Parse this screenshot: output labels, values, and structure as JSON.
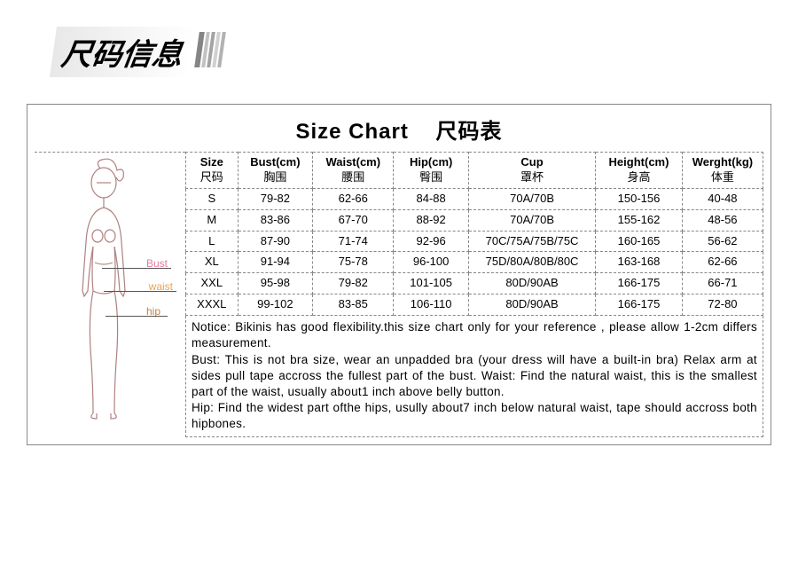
{
  "banner": {
    "text": "尺码信息"
  },
  "chart": {
    "title_en": "Size Chart",
    "title_cn": "尺码表",
    "figure_labels": {
      "bust": "Bust",
      "waist": "waist",
      "hip": "hip"
    },
    "columns": [
      {
        "en": "Size",
        "cn": "尺码"
      },
      {
        "en": "Bust(cm)",
        "cn": "胸围"
      },
      {
        "en": "Waist(cm)",
        "cn": "腰围"
      },
      {
        "en": "Hip(cm)",
        "cn": "臀围"
      },
      {
        "en": "Cup",
        "cn": "罩杯"
      },
      {
        "en": "Height(cm)",
        "cn": "身高"
      },
      {
        "en": "Werght(kg)",
        "cn": "体重"
      }
    ],
    "rows": [
      {
        "size": "S",
        "bust": "79-82",
        "waist": "62-66",
        "hip": "84-88",
        "cup": "70A/70B",
        "height": "150-156",
        "weight": "40-48"
      },
      {
        "size": "M",
        "bust": "83-86",
        "waist": "67-70",
        "hip": "88-92",
        "cup": "70A/70B",
        "height": "155-162",
        "weight": "48-56"
      },
      {
        "size": "L",
        "bust": "87-90",
        "waist": "71-74",
        "hip": "92-96",
        "cup": "70C/75A/75B/75C",
        "height": "160-165",
        "weight": "56-62"
      },
      {
        "size": "XL",
        "bust": "91-94",
        "waist": "75-78",
        "hip": "96-100",
        "cup": "75D/80A/80B/80C",
        "height": "163-168",
        "weight": "62-66"
      },
      {
        "size": "XXL",
        "bust": "95-98",
        "waist": "79-82",
        "hip": "101-105",
        "cup": "80D/90AB",
        "height": "166-175",
        "weight": "66-71"
      },
      {
        "size": "XXXL",
        "bust": "99-102",
        "waist": "83-85",
        "hip": "106-110",
        "cup": "80D/90AB",
        "height": "166-175",
        "weight": "72-80"
      }
    ],
    "notice": "Notice: Bikinis has good flexibility.this size chart only for your reference , please allow 1-2cm differs measurement.\nBust: This is not bra size, wear an unpadded bra (your dress will have a built-in bra) Relax arm at sides pull tape accross the fullest part of the bust. Waist:   Find the natural waist, this is the smallest part of the waist, usually about1 inch above belly button.\nHip: Find the widest part  ofthe hips, usully about7 inch below natural waist, tape should accross both hipbones."
  },
  "style": {
    "border_color": "#888888",
    "bust_color": "#e77a9a",
    "waist_color": "#f0a050",
    "hip_color": "#c88040",
    "font_size_title": 24,
    "font_size_table": 13
  }
}
